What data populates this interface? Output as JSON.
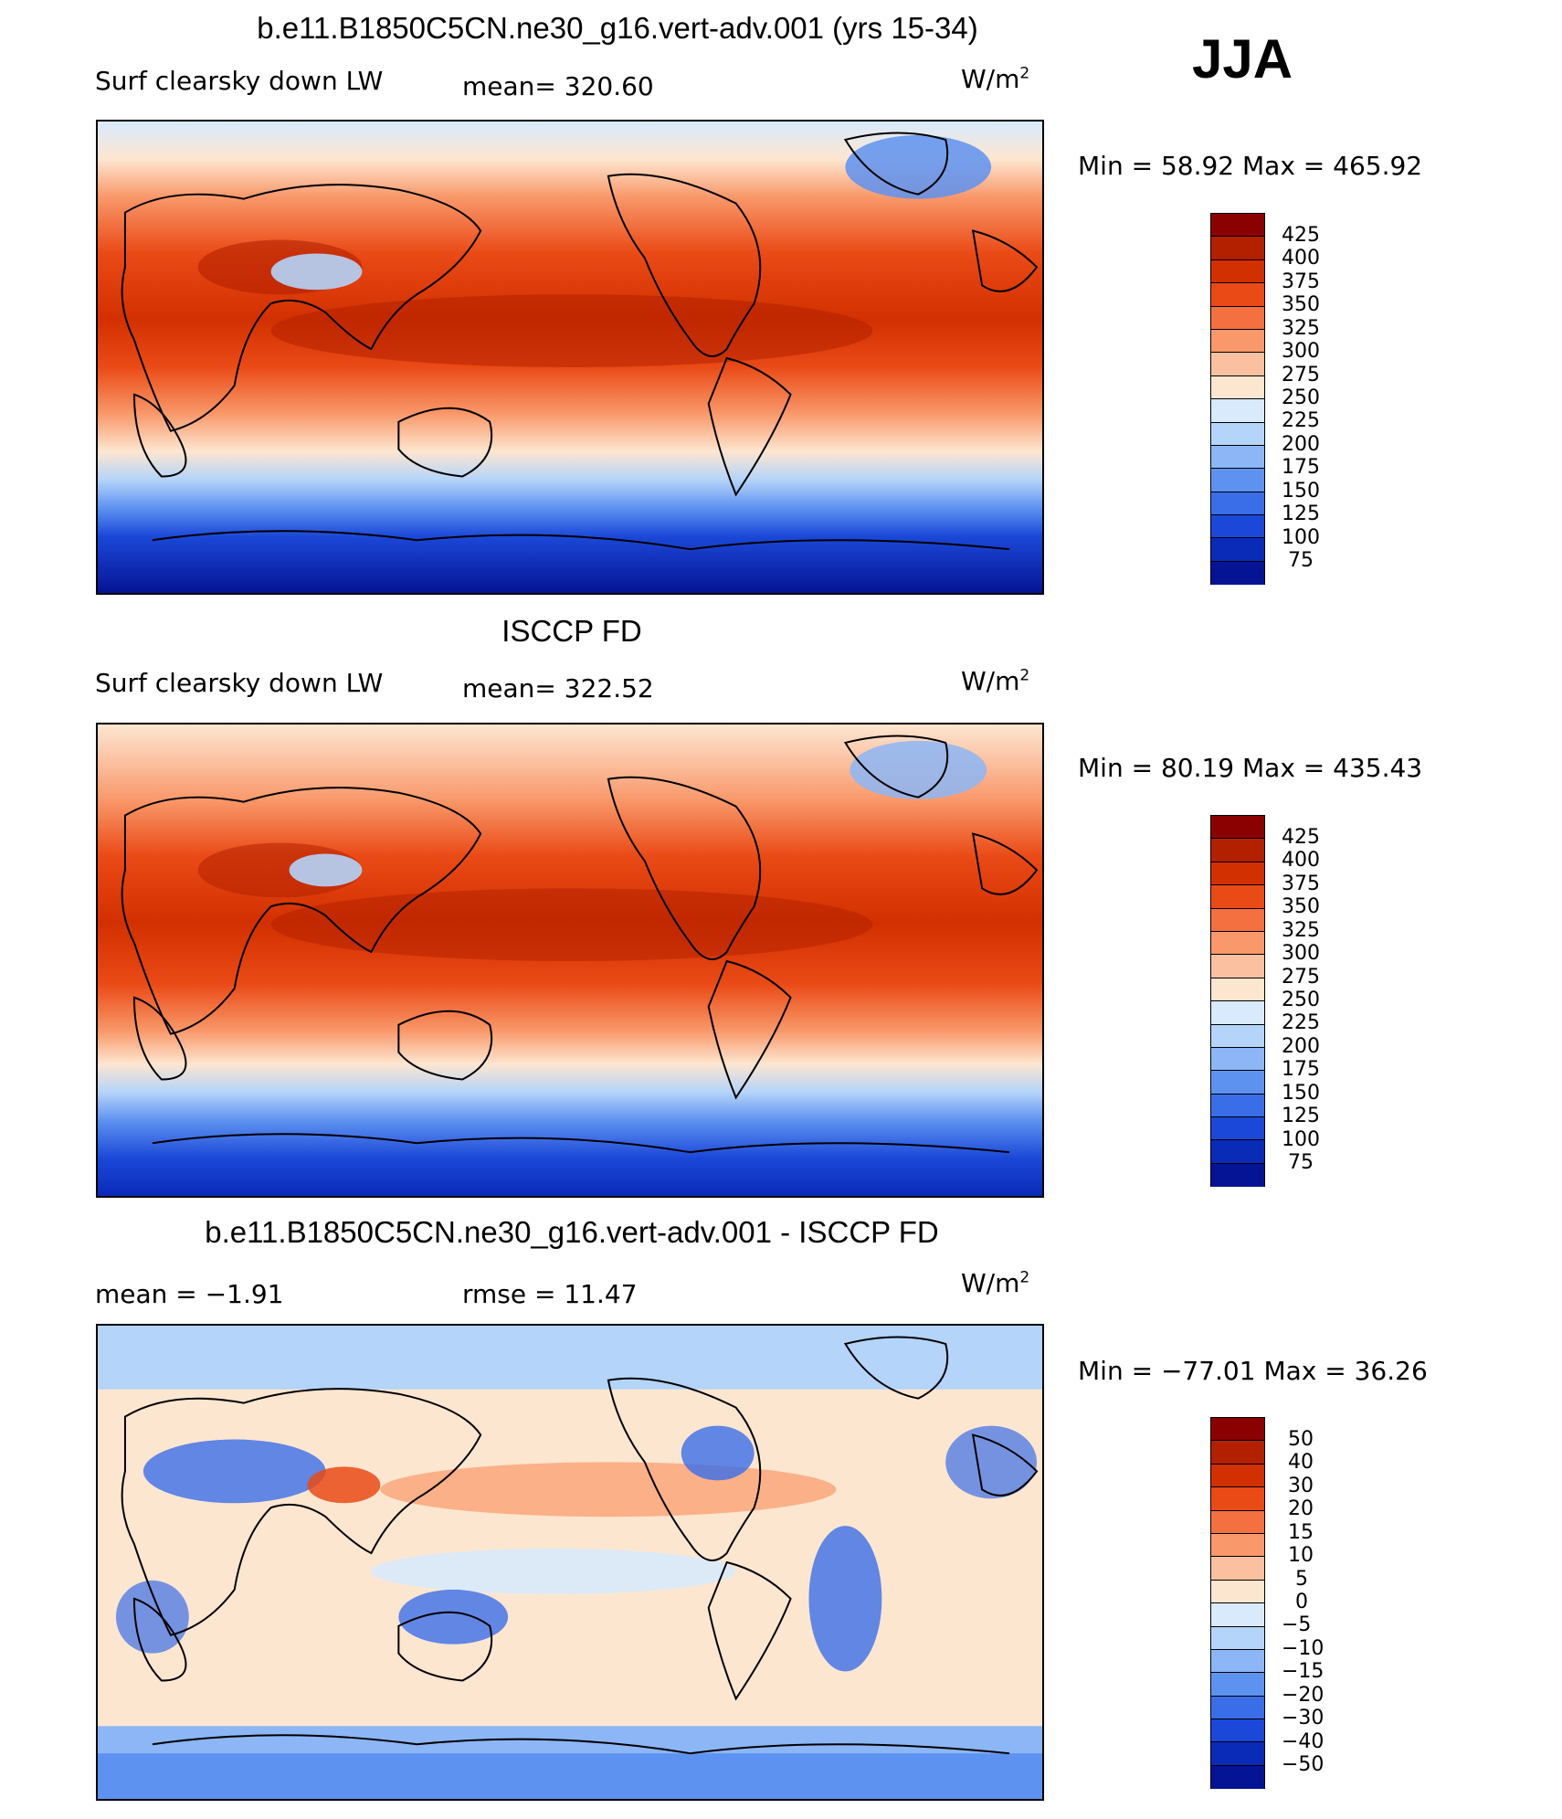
{
  "season": "JJA",
  "panels": [
    {
      "title": "b.e11.B1850C5CN.ne30_g16.vert-adv.001 (yrs 15-34)",
      "left_label": "Surf clearsky down LW",
      "stat_label": "mean= 320.60",
      "units_base": "W/m",
      "units_sup": "2",
      "min_max": "Min =   58.92  Max  =  465.92",
      "colorbar_labels": [
        "425",
        "400",
        "375",
        "350",
        "325",
        "300",
        "275",
        "250",
        "225",
        "200",
        "175",
        "150",
        "125",
        "100",
        "75"
      ],
      "colorbar_colors": [
        "#8b0000",
        "#b22000",
        "#d23000",
        "#ea4a16",
        "#f47040",
        "#f9986a",
        "#fbc0a0",
        "#fde6d0",
        "#d8eafc",
        "#b4d4fa",
        "#8cb6f6",
        "#5e92f0",
        "#3a6ee8",
        "#1b48d8",
        "#0a2ab8",
        "#051494"
      ]
    },
    {
      "title": "ISCCP FD",
      "left_label": "Surf clearsky down LW",
      "stat_label": "mean= 322.52",
      "units_base": "W/m",
      "units_sup": "2",
      "min_max": "Min =   80.19  Max  =  435.43",
      "colorbar_labels": [
        "425",
        "400",
        "375",
        "350",
        "325",
        "300",
        "275",
        "250",
        "225",
        "200",
        "175",
        "150",
        "125",
        "100",
        "75"
      ],
      "colorbar_colors": [
        "#8b0000",
        "#b22000",
        "#d23000",
        "#ea4a16",
        "#f47040",
        "#f9986a",
        "#fbc0a0",
        "#fde6d0",
        "#d8eafc",
        "#b4d4fa",
        "#8cb6f6",
        "#5e92f0",
        "#3a6ee8",
        "#1b48d8",
        "#0a2ab8",
        "#051494"
      ]
    },
    {
      "title": "b.e11.B1850C5CN.ne30_g16.vert-adv.001 - ISCCP FD",
      "left_label": "mean =   −1.91",
      "stat_label": "rmse =   11.47",
      "units_base": "W/m",
      "units_sup": "2",
      "min_max": "Min = −77.01  Max =   36.26",
      "colorbar_labels": [
        "50",
        "40",
        "30",
        "20",
        "15",
        "10",
        "5",
        "0",
        "−5",
        "−10",
        "−15",
        "−20",
        "−30",
        "−40",
        "−50"
      ],
      "colorbar_colors": [
        "#8b0000",
        "#b22000",
        "#d23000",
        "#ea4a16",
        "#f47040",
        "#f9986a",
        "#fbc0a0",
        "#fde6d0",
        "#d8eafc",
        "#b4d4fa",
        "#8cb6f6",
        "#5e92f0",
        "#3a6ee8",
        "#1b48d8",
        "#0a2ab8",
        "#051494"
      ]
    }
  ]
}
